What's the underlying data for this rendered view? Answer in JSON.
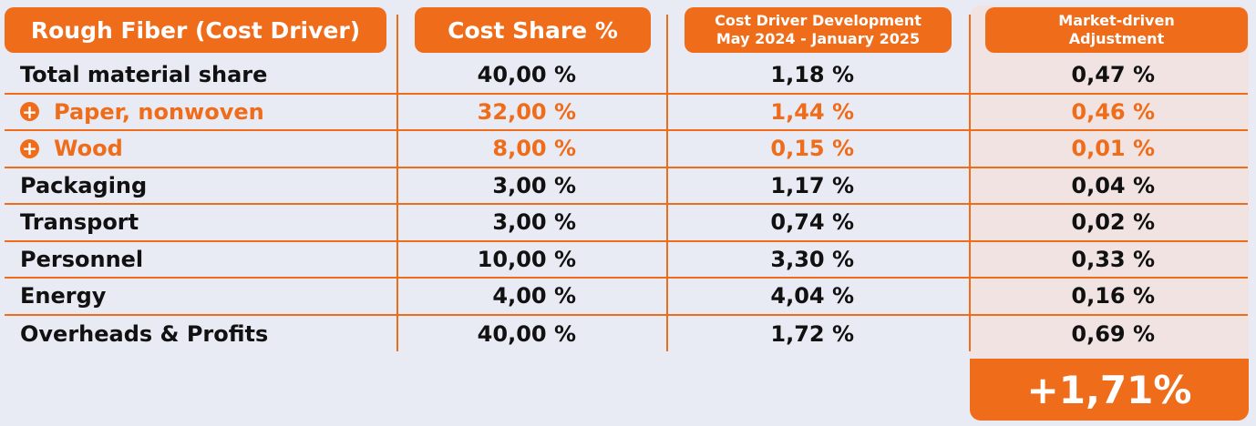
{
  "headers": {
    "driver": "Rough Fiber (Cost Driver)",
    "share": "Cost Share %",
    "development_line1": "Cost Driver Development",
    "development_line2": "May 2024 - January 2025",
    "adjustment_line1": "Market-driven",
    "adjustment_line2": "Adjustment"
  },
  "colors": {
    "accent": "#ef6c1a",
    "background": "#e9ebf4",
    "market_column": "#f0e3e2"
  },
  "chart_data": {
    "type": "table",
    "columns": [
      "Rough Fiber (Cost Driver)",
      "Cost Share %",
      "Cost Driver Development May 2024 - January 2025",
      "Market-driven Adjustment"
    ],
    "rows": [
      {
        "label": "Total material share",
        "share": "40,00 %",
        "development": "1,18 %",
        "adjustment": "0,47 %",
        "sub": false
      },
      {
        "label": "Paper, nonwoven",
        "share": "32,00 %",
        "development": "1,44 %",
        "adjustment": "0,46 %",
        "sub": true
      },
      {
        "label": "Wood",
        "share": "8,00 %",
        "development": "0,15 %",
        "adjustment": "0,01 %",
        "sub": true
      },
      {
        "label": "Packaging",
        "share": "3,00 %",
        "development": "1,17 %",
        "adjustment": "0,04 %",
        "sub": false
      },
      {
        "label": "Transport",
        "share": "3,00 %",
        "development": "0,74 %",
        "adjustment": "0,02 %",
        "sub": false
      },
      {
        "label": "Personnel",
        "share": "10,00 %",
        "development": "3,30 %",
        "adjustment": "0,33 %",
        "sub": false
      },
      {
        "label": "Energy",
        "share": "4,00 %",
        "development": "4,04 %",
        "adjustment": "0,16 %",
        "sub": false
      },
      {
        "label": "Overheads & Profits",
        "share": "40,00 %",
        "development": "1,72 %",
        "adjustment": "0,69 %",
        "sub": false
      }
    ],
    "total": "+1,71%"
  }
}
